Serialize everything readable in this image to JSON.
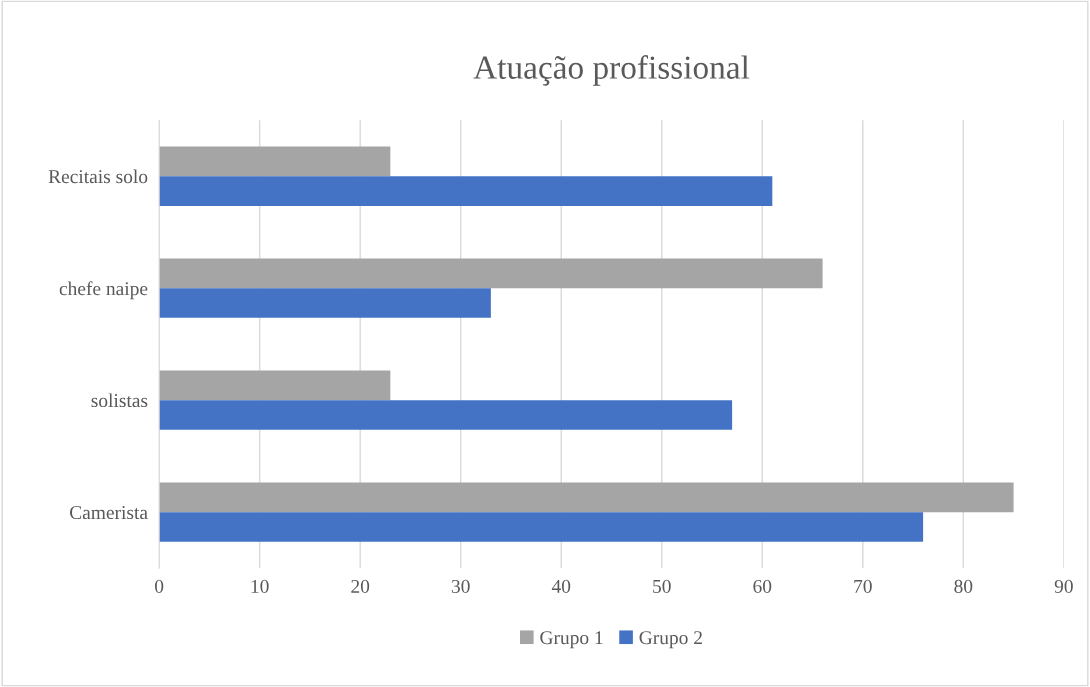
{
  "chart_data": {
    "type": "bar",
    "orientation": "horizontal",
    "title": "Atuação profissional",
    "categories": [
      "Recitais solo",
      "chefe naipe",
      "solistas",
      "Camerista"
    ],
    "series": [
      {
        "name": "Grupo 1",
        "color": "#a5a5a5",
        "values": [
          23,
          66,
          23,
          85
        ]
      },
      {
        "name": "Grupo 2",
        "color": "#4472c4",
        "values": [
          61,
          33,
          57,
          76
        ]
      }
    ],
    "xlim": [
      0,
      90
    ],
    "xticks": [
      0,
      10,
      20,
      30,
      40,
      50,
      60,
      70,
      80,
      90
    ],
    "grid": "x",
    "legend": "bottom"
  }
}
